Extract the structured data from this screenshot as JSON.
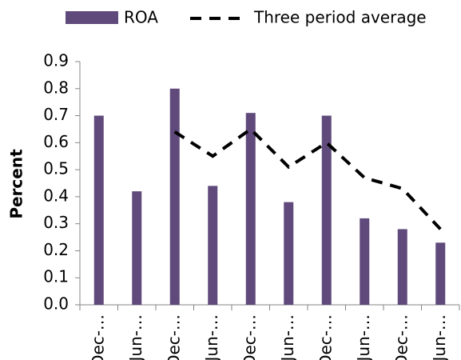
{
  "chart_data": {
    "type": "bar",
    "y_label": "Percent",
    "categories": [
      "Dec-…",
      "Jun-…",
      "Dec-…",
      "Jun-…",
      "Dec-…",
      "Jun-…",
      "Dec-…",
      "Jun-…",
      "Dec-…",
      "Jun-…"
    ],
    "series": [
      {
        "name": "ROA",
        "type": "bar",
        "color": "#604a7b",
        "values": [
          0.7,
          0.42,
          0.8,
          0.44,
          0.71,
          0.38,
          0.7,
          0.32,
          0.28,
          0.23
        ]
      },
      {
        "name": "Three period average",
        "type": "line",
        "color": "#000000",
        "dashed": true,
        "values": [
          null,
          null,
          0.64,
          0.55,
          0.65,
          0.51,
          0.6,
          0.47,
          0.43,
          0.28
        ]
      }
    ],
    "ylim": [
      0,
      0.9
    ],
    "yticks": [
      {
        "value": 0,
        "label": "0.0"
      },
      0.1,
      0.2,
      0.3,
      0.4,
      0.5,
      0.6,
      0.7,
      0.8,
      0.9
    ],
    "grid": false,
    "legend": "top"
  }
}
